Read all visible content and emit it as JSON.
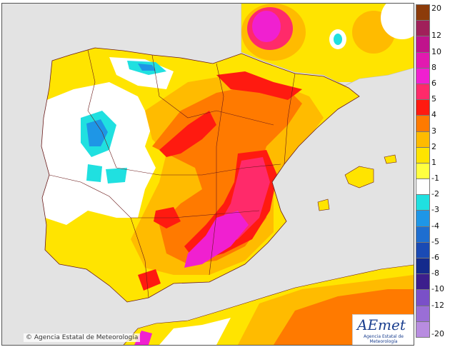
{
  "credit": "© Agencia Estatal de Meteorología",
  "logo": {
    "word": "AEmet",
    "subtitle": "Agencia Estatal de Meteorología"
  },
  "legend": {
    "breaks": [
      "20",
      "12",
      "10",
      "8",
      "6",
      "5",
      "4",
      "3",
      "2",
      "1",
      "-1",
      "-2",
      "-3",
      "-4",
      "-5",
      "-6",
      "-8",
      "-10",
      "-12",
      "-20"
    ],
    "colors": [
      "#8c3b0a",
      "#a0205a",
      "#c0138c",
      "#e21ab0",
      "#f020d0",
      "#ff2a6a",
      "#ff1a10",
      "#ff7a00",
      "#ffbb00",
      "#ffe400",
      "#ffff40",
      "#ffffff",
      "#20e0e0",
      "#1e96e6",
      "#1e6ed0",
      "#1a4ab4",
      "#142a8c",
      "#3c1e8c",
      "#7a50c8",
      "#9a6ed6",
      "#b88ce0"
    ]
  },
  "colors": {
    "sea": "#e3e3e3",
    "land_neutral": "#ffffff",
    "border": "#6a1a1a"
  }
}
